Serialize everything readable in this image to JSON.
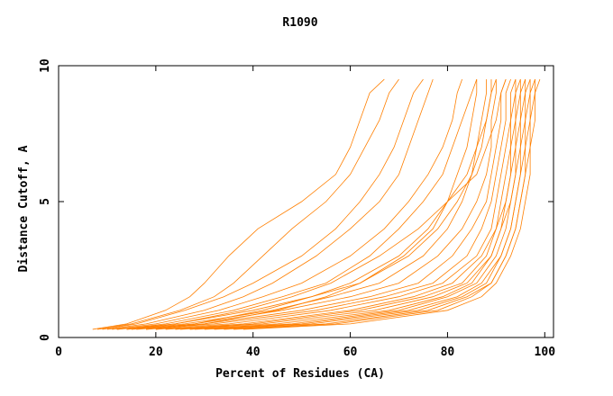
{
  "chart_data": {
    "type": "line",
    "title": "R1090",
    "xlabel": "Percent of Residues (CA)",
    "ylabel": "Distance Cutoff, A",
    "color": "#ff7f00",
    "xlim": [
      0,
      101.8
    ],
    "ylim": [
      0,
      10
    ],
    "xticks": [
      0,
      20,
      40,
      60,
      80,
      100
    ],
    "yticks": [
      0,
      5,
      10
    ],
    "y": [
      0.3,
      0.5,
      1,
      1.5,
      2,
      3,
      4,
      5,
      6,
      7,
      8,
      9,
      9.5
    ],
    "series": [
      {
        "values": [
          7,
          14,
          22,
          27,
          30,
          35,
          41,
          50,
          57,
          60,
          62,
          64,
          67
        ]
      },
      {
        "values": [
          8,
          15,
          25,
          32,
          36,
          42,
          48,
          55,
          60,
          63,
          66,
          68,
          70
        ]
      },
      {
        "values": [
          9,
          16,
          26,
          34,
          40,
          50,
          57,
          62,
          66,
          69,
          71,
          73,
          75
        ]
      },
      {
        "values": [
          10,
          18,
          30,
          38,
          44,
          53,
          60,
          66,
          70,
          72,
          74,
          76,
          77
        ]
      },
      {
        "values": [
          11,
          20,
          33,
          42,
          50,
          60,
          67,
          72,
          76,
          79,
          81,
          82,
          83
        ]
      },
      {
        "values": [
          12,
          22,
          36,
          46,
          55,
          64,
          70,
          75,
          79,
          81,
          83,
          85,
          86
        ]
      },
      {
        "values": [
          12,
          24,
          40,
          52,
          62,
          71,
          77,
          80,
          82,
          84,
          85,
          86,
          86
        ]
      },
      {
        "values": [
          14,
          26,
          44,
          56,
          66,
          75,
          80,
          83,
          85,
          86,
          87,
          88,
          88
        ]
      },
      {
        "values": [
          15,
          28,
          46,
          60,
          70,
          78,
          83,
          86,
          88,
          89,
          89,
          90,
          90
        ]
      },
      {
        "values": [
          16,
          30,
          50,
          64,
          74,
          81,
          85,
          88,
          89,
          90,
          91,
          91,
          92
        ]
      },
      {
        "values": [
          18,
          32,
          53,
          67,
          77,
          84,
          87,
          89,
          90,
          91,
          92,
          92,
          93
        ]
      },
      {
        "values": [
          20,
          35,
          56,
          70,
          79,
          86,
          89,
          90,
          91,
          92,
          93,
          93,
          94
        ]
      },
      {
        "values": [
          22,
          38,
          60,
          73,
          81,
          87,
          90,
          91,
          92,
          93,
          93,
          94,
          94
        ]
      },
      {
        "values": [
          24,
          40,
          62,
          75,
          83,
          88,
          90,
          92,
          93,
          93,
          94,
          94,
          95
        ]
      },
      {
        "values": [
          25,
          42,
          65,
          77,
          84,
          89,
          91,
          92,
          93,
          94,
          94,
          95,
          95
        ]
      },
      {
        "values": [
          27,
          45,
          68,
          79,
          85,
          89,
          91,
          93,
          94,
          94,
          95,
          95,
          96
        ]
      },
      {
        "values": [
          28,
          48,
          70,
          80,
          86,
          90,
          92,
          93,
          94,
          95,
          95,
          96,
          96
        ]
      },
      {
        "values": [
          30,
          50,
          72,
          82,
          87,
          91,
          93,
          94,
          95,
          95,
          96,
          96,
          97
        ]
      },
      {
        "values": [
          32,
          52,
          74,
          83,
          88,
          91,
          93,
          94,
          95,
          96,
          96,
          97,
          97
        ]
      },
      {
        "values": [
          34,
          55,
          76,
          84,
          89,
          92,
          94,
          95,
          96,
          96,
          97,
          97,
          98
        ]
      },
      {
        "values": [
          36,
          57,
          78,
          85,
          89,
          92,
          94,
          95,
          96,
          97,
          97,
          98,
          98
        ]
      },
      {
        "values": [
          38,
          60,
          80,
          87,
          90,
          93,
          95,
          96,
          97,
          97,
          98,
          98,
          99
        ]
      },
      {
        "values": [
          20,
          30,
          45,
          55,
          62,
          72,
          78,
          82,
          85,
          87,
          88,
          89,
          90
        ]
      },
      {
        "values": [
          18,
          28,
          42,
          52,
          60,
          70,
          76,
          80,
          84,
          86,
          88,
          89,
          89
        ]
      },
      {
        "values": [
          14,
          24,
          38,
          48,
          56,
          66,
          74,
          80,
          86,
          88,
          90,
          91,
          92
        ]
      }
    ]
  }
}
